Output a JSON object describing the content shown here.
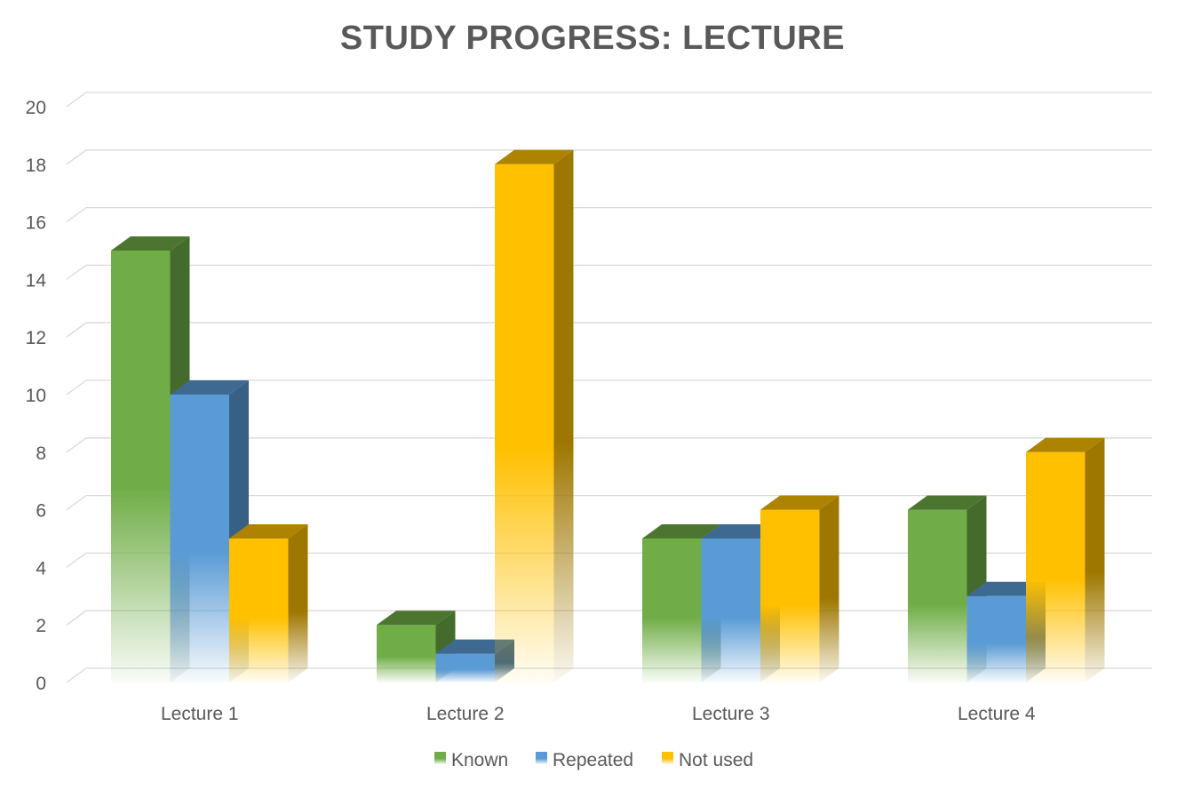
{
  "chart_data": {
    "type": "bar",
    "title": "STUDY PROGRESS: LECTURE",
    "categories": [
      "Lecture 1",
      "Lecture 2",
      "Lecture 3",
      "Lecture 4"
    ],
    "series": [
      {
        "name": "Known",
        "values": [
          15,
          2,
          5,
          6
        ]
      },
      {
        "name": "Repeated",
        "values": [
          10,
          1,
          5,
          3
        ]
      },
      {
        "name": "Not used",
        "values": [
          5,
          18,
          6,
          8
        ]
      }
    ],
    "ylim": [
      0,
      20
    ],
    "yticks": [
      0,
      2,
      4,
      6,
      8,
      10,
      12,
      14,
      16,
      18,
      20
    ],
    "grid": true,
    "legend_position": "bottom",
    "style": "3d-clustered-column",
    "colors": {
      "Known": "#70ad47",
      "Repeated": "#5b9bd5",
      "Not used": "#ffc000"
    }
  }
}
